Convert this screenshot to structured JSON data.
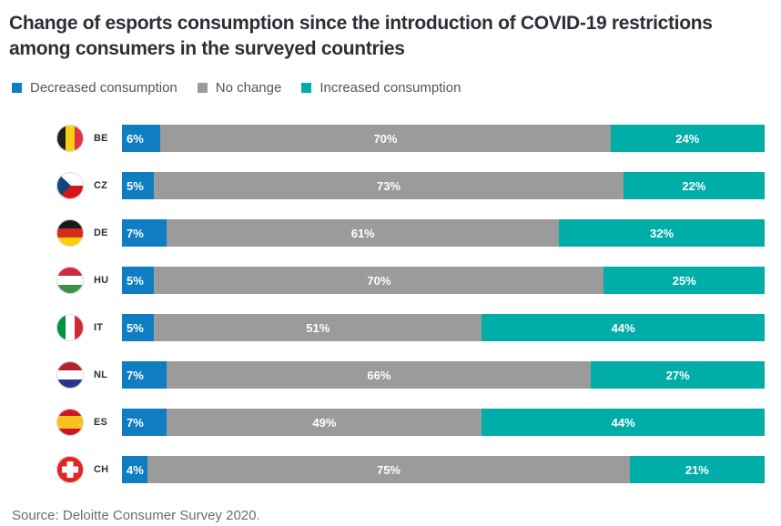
{
  "title_line1": "Change of esports consumption since the introduction of COVID-19 restrictions",
  "title_line2": "among consumers in the surveyed countries",
  "legend": [
    {
      "label": "Decreased consumption",
      "color": "#0e7dc2"
    },
    {
      "label": "No change",
      "color": "#9b9b9b"
    },
    {
      "label": "Increased consumption",
      "color": "#00ada9"
    }
  ],
  "source": "Source: Deloitte Consumer Survey 2020.",
  "colors": {
    "title_text": "#2e2e38",
    "legend_text": "#53565a",
    "source_text": "#6e6e6e",
    "bar_label_text": "#ffffff"
  },
  "chart_data": {
    "type": "bar",
    "orientation": "horizontal",
    "stacked": true,
    "unit": "%",
    "xlim": [
      0,
      100
    ],
    "grid": false,
    "legend_position": "top",
    "title": "Change of esports consumption since the introduction of COVID-19 restrictions among consumers in the surveyed countries",
    "categories": [
      "BE",
      "CZ",
      "DE",
      "HU",
      "IT",
      "NL",
      "ES",
      "CH"
    ],
    "series": [
      {
        "name": "Decreased consumption",
        "color": "#0e7dc2",
        "values": [
          6,
          5,
          7,
          5,
          5,
          7,
          7,
          4
        ]
      },
      {
        "name": "No change",
        "color": "#9b9b9b",
        "values": [
          70,
          73,
          61,
          70,
          51,
          66,
          49,
          75
        ]
      },
      {
        "name": "Increased consumption",
        "color": "#00ada9",
        "values": [
          24,
          22,
          32,
          25,
          44,
          27,
          44,
          21
        ]
      }
    ]
  }
}
